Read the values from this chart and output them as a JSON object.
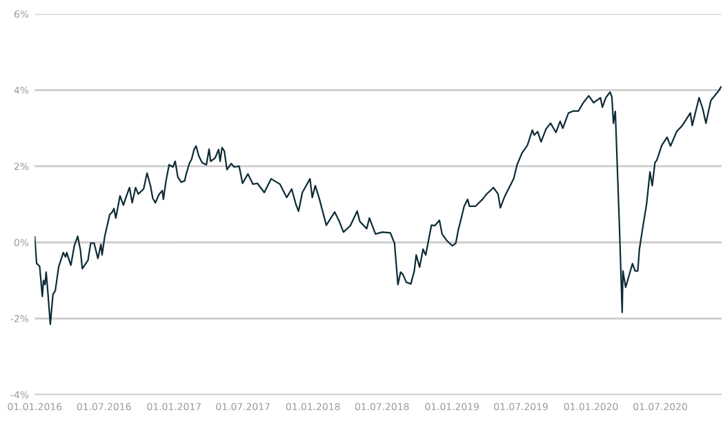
{
  "chart_data": {
    "type": "line",
    "x": [
      "2016-01-01",
      "2016-01-06",
      "2016-01-14",
      "2016-01-21",
      "2016-01-24",
      "2016-01-28",
      "2016-01-31",
      "2016-02-04",
      "2016-02-11",
      "2016-02-18",
      "2016-02-24",
      "2016-03-04",
      "2016-03-16",
      "2016-03-22",
      "2016-03-25",
      "2016-04-05",
      "2016-04-14",
      "2016-04-23",
      "2016-04-30",
      "2016-05-05",
      "2016-05-20",
      "2016-05-27",
      "2016-06-05",
      "2016-06-15",
      "2016-06-23",
      "2016-06-26",
      "2016-07-03",
      "2016-07-16",
      "2016-07-23",
      "2016-07-27",
      "2016-08-01",
      "2016-08-12",
      "2016-08-21",
      "2016-08-30",
      "2016-09-06",
      "2016-09-13",
      "2016-09-22",
      "2016-09-29",
      "2016-10-13",
      "2016-10-22",
      "2016-10-31",
      "2016-11-06",
      "2016-11-13",
      "2016-11-22",
      "2016-12-01",
      "2016-12-04",
      "2016-12-11",
      "2016-12-19",
      "2016-12-29",
      "2017-01-04",
      "2017-01-11",
      "2017-01-20",
      "2017-01-29",
      "2017-02-01",
      "2017-02-10",
      "2017-02-16",
      "2017-02-23",
      "2017-02-28",
      "2017-03-07",
      "2017-03-16",
      "2017-03-27",
      "2017-04-03",
      "2017-04-07",
      "2017-04-19",
      "2017-04-28",
      "2017-05-02",
      "2017-05-07",
      "2017-05-13",
      "2017-05-20",
      "2017-05-31",
      "2017-06-08",
      "2017-06-21",
      "2017-06-30",
      "2017-07-14",
      "2017-07-27",
      "2017-08-08",
      "2017-08-26",
      "2017-09-13",
      "2017-10-06",
      "2017-10-24",
      "2017-11-06",
      "2017-11-17",
      "2017-11-24",
      "2017-12-04",
      "2017-12-24",
      "2017-12-30",
      "2018-01-07",
      "2018-01-18",
      "2018-02-05",
      "2018-02-27",
      "2018-03-11",
      "2018-03-22",
      "2018-04-09",
      "2018-04-27",
      "2018-05-04",
      "2018-05-22",
      "2018-05-29",
      "2018-06-14",
      "2018-07-02",
      "2018-07-23",
      "2018-08-03",
      "2018-08-12",
      "2018-08-19",
      "2018-08-25",
      "2018-09-03",
      "2018-09-15",
      "2018-09-24",
      "2018-09-29",
      "2018-10-08",
      "2018-10-17",
      "2018-10-24",
      "2018-11-08",
      "2018-11-17",
      "2018-11-29",
      "2018-12-06",
      "2018-12-19",
      "2019-01-02",
      "2019-01-11",
      "2019-01-18",
      "2019-01-24",
      "2019-02-02",
      "2019-02-11",
      "2019-02-16",
      "2019-03-04",
      "2019-03-22",
      "2019-04-02",
      "2019-04-20",
      "2019-05-02",
      "2019-05-08",
      "2019-05-20",
      "2019-06-12",
      "2019-06-21",
      "2019-07-04",
      "2019-07-18",
      "2019-07-31",
      "2019-08-05",
      "2019-08-14",
      "2019-08-23",
      "2019-09-05",
      "2019-09-17",
      "2019-10-01",
      "2019-10-12",
      "2019-10-19",
      "2019-11-03",
      "2019-11-15",
      "2019-11-29",
      "2019-12-12",
      "2019-12-26",
      "2020-01-08",
      "2020-01-26",
      "2020-01-31",
      "2020-02-09",
      "2020-02-20",
      "2020-02-25",
      "2020-02-29",
      "2020-03-05",
      "2020-03-10",
      "2020-03-16",
      "2020-03-23",
      "2020-03-25",
      "2020-04-01",
      "2020-04-10",
      "2020-04-19",
      "2020-04-26",
      "2020-05-03",
      "2020-05-07",
      "2020-05-17",
      "2020-05-26",
      "2020-06-04",
      "2020-06-10",
      "2020-06-17",
      "2020-06-22",
      "2020-07-05",
      "2020-07-19",
      "2020-07-28",
      "2020-08-13",
      "2020-08-28",
      "2020-09-18",
      "2020-09-23",
      "2020-10-11",
      "2020-10-20",
      "2020-10-29",
      "2020-11-11",
      "2020-11-29",
      "2020-12-08"
    ],
    "series": [
      {
        "color": "#0d2b36",
        "values": [
          0.15,
          -0.55,
          -0.63,
          -1.42,
          -1.0,
          -1.11,
          -0.78,
          -1.24,
          -2.15,
          -1.36,
          -1.27,
          -0.64,
          -0.27,
          -0.38,
          -0.27,
          -0.6,
          -0.09,
          0.16,
          -0.2,
          -0.69,
          -0.47,
          -0.02,
          -0.02,
          -0.42,
          -0.05,
          -0.33,
          0.16,
          0.73,
          0.8,
          0.89,
          0.64,
          1.22,
          0.98,
          1.25,
          1.44,
          1.04,
          1.44,
          1.27,
          1.4,
          1.82,
          1.49,
          1.16,
          1.04,
          1.25,
          1.36,
          1.13,
          1.62,
          2.04,
          1.98,
          2.13,
          1.71,
          1.58,
          1.62,
          1.76,
          2.07,
          2.18,
          2.45,
          2.53,
          2.27,
          2.09,
          2.04,
          2.45,
          2.13,
          2.22,
          2.44,
          2.13,
          2.49,
          2.4,
          1.91,
          2.07,
          1.98,
          2.0,
          1.55,
          1.8,
          1.53,
          1.55,
          1.31,
          1.67,
          1.53,
          1.18,
          1.4,
          1.0,
          0.82,
          1.31,
          1.67,
          1.18,
          1.49,
          1.13,
          0.45,
          0.8,
          0.55,
          0.27,
          0.44,
          0.82,
          0.55,
          0.36,
          0.64,
          0.22,
          0.27,
          0.25,
          -0.02,
          -1.11,
          -0.78,
          -0.84,
          -1.05,
          -1.09,
          -0.75,
          -0.33,
          -0.65,
          -0.18,
          -0.33,
          0.45,
          0.44,
          0.58,
          0.22,
          0.04,
          -0.09,
          -0.02,
          0.35,
          0.58,
          0.95,
          1.13,
          0.95,
          0.95,
          1.13,
          1.27,
          1.44,
          1.27,
          0.91,
          1.22,
          1.67,
          2.04,
          2.35,
          2.55,
          2.95,
          2.82,
          2.91,
          2.64,
          2.98,
          3.13,
          2.89,
          3.18,
          3.0,
          3.4,
          3.45,
          3.45,
          3.67,
          3.85,
          3.67,
          3.8,
          3.55,
          3.8,
          3.95,
          3.82,
          3.13,
          3.44,
          2.04,
          0.35,
          -1.84,
          -0.75,
          -1.18,
          -0.87,
          -0.56,
          -0.75,
          -0.75,
          -0.2,
          0.45,
          1.0,
          1.85,
          1.49,
          2.09,
          2.16,
          2.55,
          2.76,
          2.53,
          2.91,
          3.07,
          3.4,
          3.07,
          3.8,
          3.53,
          3.13,
          3.73,
          3.95,
          4.09
        ]
      }
    ],
    "xlim": [
      "2016-01-01",
      "2020-12-09"
    ],
    "xticks": [
      {
        "value": "2016-01-01",
        "label": "01.01.2016"
      },
      {
        "value": "2016-07-01",
        "label": "01.07.2016"
      },
      {
        "value": "2017-01-01",
        "label": "01.01.2017"
      },
      {
        "value": "2017-07-01",
        "label": "01.07.2017"
      },
      {
        "value": "2018-01-01",
        "label": "01.01.2018"
      },
      {
        "value": "2018-07-01",
        "label": "01.07.2018"
      },
      {
        "value": "2019-01-01",
        "label": "01.01.2019"
      },
      {
        "value": "2019-07-01",
        "label": "01.07.2019"
      },
      {
        "value": "2020-01-01",
        "label": "01.01.2020"
      },
      {
        "value": "2020-07-01",
        "label": "01.07.2020"
      }
    ],
    "ylim": [
      -4,
      6
    ],
    "yticks": [
      {
        "value": -4,
        "label": "-4%"
      },
      {
        "value": -2,
        "label": "-2%"
      },
      {
        "value": 0,
        "label": "0%"
      },
      {
        "value": 2,
        "label": "2%"
      },
      {
        "value": 4,
        "label": "4%"
      },
      {
        "value": 6,
        "label": "6%"
      }
    ],
    "grid": "y"
  }
}
